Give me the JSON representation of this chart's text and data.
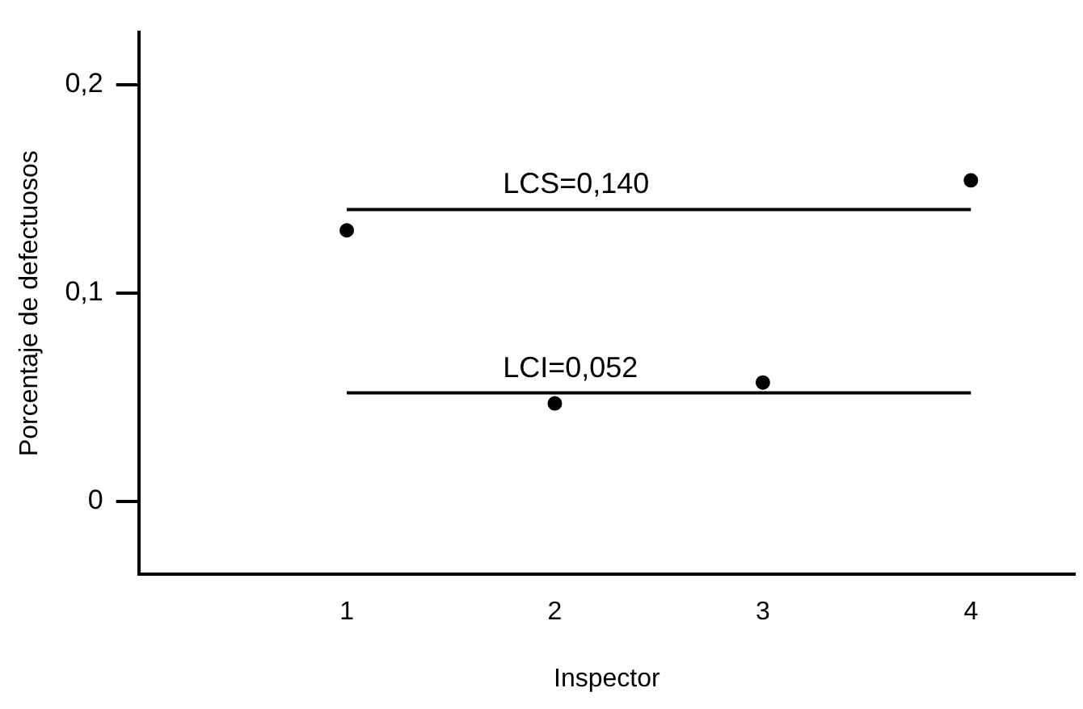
{
  "chart_data": {
    "type": "scatter",
    "xlabel": "Inspector",
    "ylabel": "Porcentaje de defectuosos",
    "x": [
      1,
      2,
      3,
      4
    ],
    "values": [
      0.13,
      0.047,
      0.057,
      0.154
    ],
    "color": "#000000",
    "marker": "circle",
    "xlim": [
      0,
      4.5
    ],
    "xticks": [
      1,
      2,
      3,
      4
    ],
    "ylim": [
      -0.035,
      0.225
    ],
    "yticks": [
      {
        "value": 0,
        "label": "0"
      },
      {
        "value": 0.1,
        "label": "0,1"
      },
      {
        "value": 0.2,
        "label": "0,2"
      }
    ],
    "ref_lines": [
      {
        "axis": "y",
        "value": 0.14,
        "label": "LCS=0,140",
        "color": "#000000"
      },
      {
        "axis": "y",
        "value": 0.052,
        "label": "LCI=0,052",
        "color": "#000000"
      }
    ],
    "grid": false,
    "legend": false
  }
}
